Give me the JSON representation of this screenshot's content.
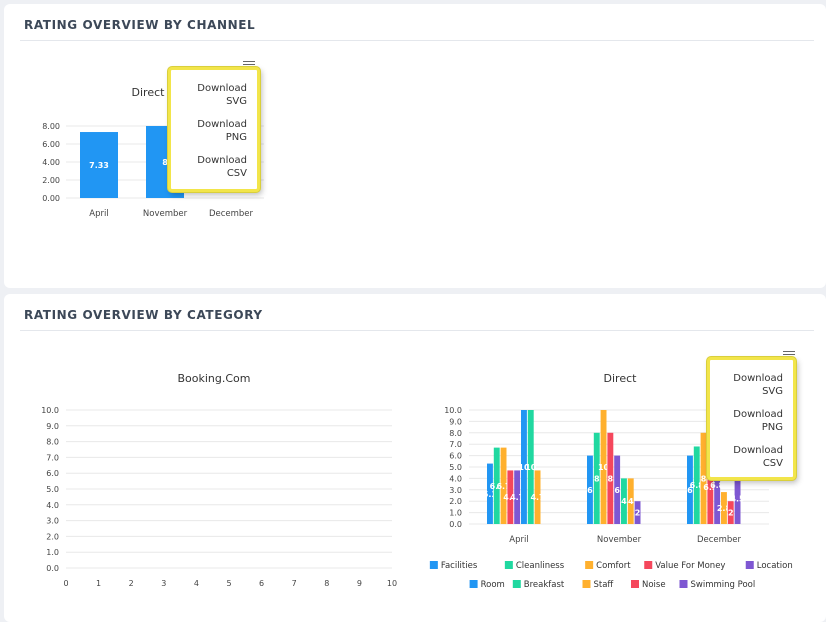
{
  "channel_card": {
    "title": "RATING OVERVIEW BY CHANNEL",
    "menu": {
      "items": [
        "Download SVG",
        "Download PNG",
        "Download CSV"
      ]
    }
  },
  "category_card": {
    "title": "RATING OVERVIEW BY CATEGORY",
    "menu": {
      "items": [
        "Download SVG",
        "Download PNG",
        "Download CSV"
      ]
    }
  },
  "colors": {
    "bar_blue": "#2196f3",
    "Facilities": "#2196f3",
    "Cleanliness": "#20d8a0",
    "Comfort": "#ffb02e",
    "Value For Money": "#f5475c",
    "Location": "#7e57d2",
    "Room": "#2196f3",
    "Breakfast": "#20d8a0",
    "Staff": "#ffb02e",
    "Noise": "#f5475c",
    "Swimming Pool": "#7e57d2"
  },
  "chart_data": [
    {
      "type": "bar",
      "title": "Direct",
      "categories": [
        "April",
        "November",
        "December"
      ],
      "values": [
        7.33,
        8,
        null
      ],
      "value_labels": [
        "7.33",
        "8",
        ""
      ],
      "y_ticks": [
        "0.00",
        "2.00",
        "4.00",
        "6.00",
        "8.00"
      ],
      "ylim": [
        0,
        8
      ]
    },
    {
      "type": "bar",
      "title": "Booking.Com",
      "categories": [],
      "series": [],
      "x_ticks": [
        "0",
        "1",
        "2",
        "3",
        "4",
        "5",
        "6",
        "7",
        "8",
        "9",
        "10"
      ],
      "y_ticks": [
        "0.0",
        "1.0",
        "2.0",
        "3.0",
        "4.0",
        "5.0",
        "6.0",
        "7.0",
        "8.0",
        "9.0",
        "10.0"
      ],
      "ylim": [
        0,
        10
      ],
      "xlim": [
        0,
        10
      ]
    },
    {
      "type": "bar",
      "title": "Direct",
      "categories": [
        "April",
        "November",
        "December"
      ],
      "y_ticks": [
        "0.0",
        "1.0",
        "2.0",
        "3.0",
        "4.0",
        "5.0",
        "6.0",
        "7.0",
        "8.0",
        "9.0",
        "10.0"
      ],
      "ylim": [
        0,
        10
      ],
      "legend_position": "bottom",
      "legend_rows": [
        [
          "Facilities",
          "Cleanliness",
          "Comfort",
          "Value For Money",
          "Location"
        ],
        [
          "Room",
          "Breakfast",
          "Staff",
          "Noise",
          "Swimming Pool"
        ]
      ],
      "series": [
        {
          "name": "Facilities",
          "values": [
            5.3,
            6,
            6
          ],
          "labels": [
            "5.3",
            "6",
            "6"
          ]
        },
        {
          "name": "Cleanliness",
          "values": [
            6.7,
            8,
            6.8
          ],
          "labels": [
            "6.7",
            "8",
            "6.8"
          ]
        },
        {
          "name": "Comfort",
          "values": [
            6.7,
            10,
            8
          ],
          "labels": [
            "6.7",
            "10",
            "8"
          ]
        },
        {
          "name": "Value For Money",
          "values": [
            4.7,
            8,
            6.5
          ],
          "labels": [
            "4.7",
            "8",
            "6.5"
          ]
        },
        {
          "name": "Location",
          "values": [
            4.7,
            6,
            6.8
          ],
          "labels": [
            "4.7",
            "6",
            "6.8"
          ]
        },
        {
          "name": "Room",
          "values": [
            10,
            null,
            null
          ],
          "labels": [
            "10",
            "",
            ""
          ]
        },
        {
          "name": "Breakfast",
          "values": [
            10,
            4,
            null
          ],
          "labels": [
            "10",
            "4",
            ""
          ]
        },
        {
          "name": "Staff",
          "values": [
            4.7,
            4,
            2.8
          ],
          "labels": [
            "4.7",
            "4",
            "2.8"
          ]
        },
        {
          "name": "Noise",
          "values": [
            null,
            null,
            2
          ],
          "labels": [
            "",
            "",
            "2"
          ]
        },
        {
          "name": "Swimming Pool",
          "values": [
            null,
            2,
            4.5
          ],
          "labels": [
            "",
            "2",
            "4.5"
          ]
        }
      ]
    }
  ]
}
